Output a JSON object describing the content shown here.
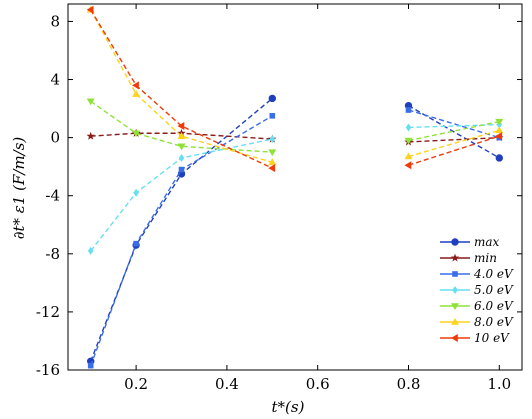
{
  "chart_data": {
    "type": "line",
    "xlabel": "t*(s)",
    "ylabel": "∂t* ε1 (F/m/s)",
    "xlim": [
      0.05,
      1.05
    ],
    "ylim": [
      -16,
      9.2
    ],
    "x_ticks": [
      0.2,
      0.4,
      0.6,
      0.8,
      1.0
    ],
    "x_tick_labels": [
      "0.2",
      "0.4",
      "0.6",
      "0.8",
      "1.0"
    ],
    "y_ticks": [
      -16,
      -12,
      -8,
      -4,
      0,
      4,
      8
    ],
    "y_tick_labels": [
      "-16",
      "-12",
      "-8",
      "-4",
      "0",
      "4",
      "8"
    ],
    "legend_position": "bottom-right",
    "line_style": "dashed",
    "x": [
      0.1,
      0.2,
      0.3,
      0.5,
      0.8,
      1.0
    ],
    "series": [
      {
        "name": "max",
        "color": "#1f3fbf",
        "marker": "circle",
        "values": [
          -15.4,
          -7.4,
          -2.5,
          2.7,
          2.2,
          -1.4
        ]
      },
      {
        "name": "min",
        "color": "#8b1a1a",
        "marker": "star",
        "values": [
          0.1,
          0.3,
          0.3,
          -0.1,
          -0.3,
          0.0
        ]
      },
      {
        "name": "4.0  eV",
        "color": "#3a6ee8",
        "marker": "square",
        "values": [
          -15.7,
          -7.3,
          -2.2,
          1.5,
          1.9,
          0.0
        ]
      },
      {
        "name": "5.0  eV",
        "color": "#66e0f0",
        "marker": "diamond",
        "values": [
          -7.8,
          -3.8,
          -1.4,
          -0.1,
          0.7,
          0.9
        ]
      },
      {
        "name": "6.0  eV",
        "color": "#8fe23a",
        "marker": "triangle-down",
        "values": [
          2.5,
          0.3,
          -0.6,
          -1.0,
          -0.2,
          1.1
        ]
      },
      {
        "name": "8.0  eV",
        "color": "#ffd21f",
        "marker": "triangle-up",
        "values": [
          8.8,
          3.0,
          0.1,
          -1.7,
          -1.3,
          0.5
        ]
      },
      {
        "name": "10  eV",
        "color": "#f03a0a",
        "marker": "triangle-left",
        "values": [
          8.8,
          3.6,
          0.8,
          -2.1,
          -1.9,
          0.1
        ]
      }
    ]
  }
}
